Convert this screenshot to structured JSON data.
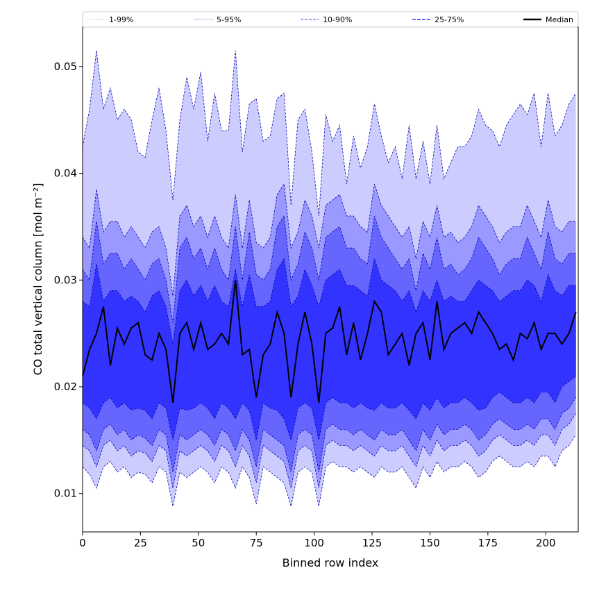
{
  "chart_data": {
    "type": "area",
    "title": "",
    "xlabel": "Binned row index",
    "ylabel": "CO total vertical column [mol m⁻²]",
    "xlim": [
      0,
      214
    ],
    "ylim": [
      0.0064,
      0.0537
    ],
    "x_ticks": [
      0,
      25,
      50,
      75,
      100,
      125,
      150,
      175,
      200
    ],
    "y_ticks": [
      0.01,
      0.02,
      0.03,
      0.04,
      0.05
    ],
    "y_tick_labels": [
      "0.01",
      "0.02",
      "0.03",
      "0.04",
      "0.05"
    ],
    "x_start": 0,
    "x_step": 3,
    "legend_placement": "top",
    "legend": [
      {
        "label": "1-99%",
        "color": "#ccccff"
      },
      {
        "label": "5-95%",
        "color": "#9999ff"
      },
      {
        "label": "10-90%",
        "color": "#6666ff"
      },
      {
        "label": "25-75%",
        "color": "#3333ff"
      },
      {
        "label": "Median",
        "color": "#000000"
      }
    ],
    "bands": [
      {
        "name": "1-99%",
        "color": "#ccccff",
        "lower": [
          0.0125,
          0.0118,
          0.0105,
          0.0125,
          0.013,
          0.012,
          0.0125,
          0.0115,
          0.012,
          0.0118,
          0.011,
          0.0125,
          0.012,
          0.0088,
          0.012,
          0.0115,
          0.012,
          0.0125,
          0.012,
          0.011,
          0.0125,
          0.012,
          0.0105,
          0.0125,
          0.0115,
          0.009,
          0.0125,
          0.012,
          0.0115,
          0.011,
          0.0088,
          0.012,
          0.0125,
          0.012,
          0.0088,
          0.0125,
          0.013,
          0.0125,
          0.0125,
          0.012,
          0.0125,
          0.012,
          0.0115,
          0.0125,
          0.012,
          0.012,
          0.0125,
          0.0115,
          0.0105,
          0.0125,
          0.0115,
          0.013,
          0.012,
          0.0125,
          0.0125,
          0.013,
          0.0125,
          0.0115,
          0.012,
          0.013,
          0.0135,
          0.013,
          0.0125,
          0.0125,
          0.013,
          0.0125,
          0.0135,
          0.0135,
          0.0125,
          0.014,
          0.0145,
          0.0155
        ],
        "upper": [
          0.0425,
          0.046,
          0.0515,
          0.046,
          0.048,
          0.045,
          0.046,
          0.045,
          0.042,
          0.0415,
          0.045,
          0.048,
          0.044,
          0.0375,
          0.045,
          0.049,
          0.046,
          0.0495,
          0.043,
          0.0475,
          0.044,
          0.044,
          0.0515,
          0.042,
          0.0465,
          0.047,
          0.043,
          0.0435,
          0.047,
          0.0475,
          0.037,
          0.045,
          0.046,
          0.042,
          0.036,
          0.0455,
          0.043,
          0.0445,
          0.039,
          0.0435,
          0.0405,
          0.0425,
          0.0465,
          0.0435,
          0.041,
          0.0425,
          0.0395,
          0.0445,
          0.0395,
          0.043,
          0.039,
          0.0445,
          0.0395,
          0.041,
          0.0425,
          0.0425,
          0.0435,
          0.046,
          0.0445,
          0.044,
          0.0425,
          0.0445,
          0.0455,
          0.0465,
          0.0455,
          0.0475,
          0.0425,
          0.0475,
          0.0435,
          0.0445,
          0.0465,
          0.0475
        ]
      },
      {
        "name": "5-95%",
        "color": "#9999ff",
        "lower": [
          0.0145,
          0.014,
          0.0125,
          0.0145,
          0.015,
          0.014,
          0.0145,
          0.0135,
          0.014,
          0.0138,
          0.013,
          0.0145,
          0.014,
          0.0105,
          0.014,
          0.0135,
          0.014,
          0.0145,
          0.014,
          0.013,
          0.0145,
          0.014,
          0.0125,
          0.0145,
          0.0135,
          0.011,
          0.0145,
          0.014,
          0.0135,
          0.013,
          0.0105,
          0.014,
          0.0145,
          0.014,
          0.0105,
          0.0145,
          0.015,
          0.0145,
          0.0145,
          0.014,
          0.0145,
          0.014,
          0.0135,
          0.0145,
          0.014,
          0.014,
          0.0145,
          0.0135,
          0.0125,
          0.0145,
          0.0135,
          0.015,
          0.014,
          0.0145,
          0.0145,
          0.015,
          0.0145,
          0.0135,
          0.014,
          0.015,
          0.0155,
          0.015,
          0.0145,
          0.0145,
          0.015,
          0.0145,
          0.0155,
          0.0155,
          0.0145,
          0.016,
          0.0165,
          0.0175
        ],
        "upper": [
          0.034,
          0.033,
          0.0385,
          0.0345,
          0.0355,
          0.0355,
          0.034,
          0.035,
          0.034,
          0.033,
          0.0345,
          0.035,
          0.033,
          0.0285,
          0.036,
          0.037,
          0.035,
          0.036,
          0.034,
          0.036,
          0.034,
          0.033,
          0.038,
          0.033,
          0.0375,
          0.0335,
          0.033,
          0.034,
          0.038,
          0.039,
          0.033,
          0.0345,
          0.0375,
          0.036,
          0.033,
          0.037,
          0.0375,
          0.038,
          0.036,
          0.036,
          0.035,
          0.0345,
          0.039,
          0.037,
          0.036,
          0.035,
          0.034,
          0.035,
          0.032,
          0.0355,
          0.034,
          0.037,
          0.034,
          0.0345,
          0.0335,
          0.034,
          0.035,
          0.037,
          0.036,
          0.035,
          0.0335,
          0.0345,
          0.035,
          0.035,
          0.037,
          0.0355,
          0.034,
          0.0375,
          0.035,
          0.0345,
          0.0355,
          0.0355
        ]
      },
      {
        "name": "10-90%",
        "color": "#6666ff",
        "lower": [
          0.016,
          0.0155,
          0.014,
          0.016,
          0.0165,
          0.0155,
          0.016,
          0.015,
          0.0155,
          0.0152,
          0.0145,
          0.016,
          0.0155,
          0.012,
          0.0155,
          0.015,
          0.0155,
          0.016,
          0.0155,
          0.0145,
          0.016,
          0.0155,
          0.014,
          0.016,
          0.015,
          0.0125,
          0.016,
          0.0155,
          0.015,
          0.0145,
          0.012,
          0.0155,
          0.016,
          0.0155,
          0.012,
          0.016,
          0.0165,
          0.016,
          0.016,
          0.0155,
          0.016,
          0.0155,
          0.015,
          0.016,
          0.0155,
          0.0155,
          0.016,
          0.015,
          0.014,
          0.016,
          0.015,
          0.0165,
          0.0155,
          0.016,
          0.016,
          0.0165,
          0.016,
          0.015,
          0.0155,
          0.0165,
          0.017,
          0.0165,
          0.016,
          0.016,
          0.0165,
          0.016,
          0.017,
          0.017,
          0.016,
          0.0175,
          0.018,
          0.019
        ],
        "upper": [
          0.031,
          0.03,
          0.0355,
          0.0315,
          0.0325,
          0.0325,
          0.031,
          0.032,
          0.031,
          0.03,
          0.0315,
          0.032,
          0.03,
          0.026,
          0.033,
          0.034,
          0.032,
          0.033,
          0.031,
          0.033,
          0.031,
          0.03,
          0.035,
          0.03,
          0.0345,
          0.0305,
          0.03,
          0.031,
          0.035,
          0.036,
          0.03,
          0.0315,
          0.0345,
          0.033,
          0.03,
          0.034,
          0.0345,
          0.035,
          0.033,
          0.033,
          0.032,
          0.0315,
          0.036,
          0.034,
          0.033,
          0.032,
          0.031,
          0.032,
          0.029,
          0.0325,
          0.031,
          0.034,
          0.031,
          0.0315,
          0.0305,
          0.031,
          0.032,
          0.034,
          0.033,
          0.032,
          0.0305,
          0.0315,
          0.032,
          0.032,
          0.034,
          0.0325,
          0.031,
          0.0345,
          0.032,
          0.0315,
          0.0325,
          0.0325
        ]
      },
      {
        "name": "25-75%",
        "color": "#3333ff",
        "lower": [
          0.0185,
          0.018,
          0.017,
          0.0185,
          0.019,
          0.018,
          0.0185,
          0.0178,
          0.018,
          0.0178,
          0.017,
          0.0185,
          0.018,
          0.015,
          0.018,
          0.0178,
          0.018,
          0.0185,
          0.018,
          0.017,
          0.0185,
          0.018,
          0.017,
          0.0185,
          0.0178,
          0.015,
          0.0185,
          0.018,
          0.0178,
          0.017,
          0.015,
          0.018,
          0.0185,
          0.018,
          0.015,
          0.0185,
          0.019,
          0.0185,
          0.0185,
          0.018,
          0.0185,
          0.018,
          0.0178,
          0.0185,
          0.018,
          0.018,
          0.0185,
          0.0178,
          0.017,
          0.0185,
          0.0178,
          0.019,
          0.018,
          0.0185,
          0.0185,
          0.019,
          0.0185,
          0.0178,
          0.018,
          0.019,
          0.0195,
          0.019,
          0.0185,
          0.0185,
          0.019,
          0.0185,
          0.0195,
          0.0195,
          0.0185,
          0.02,
          0.0205,
          0.021
        ],
        "upper": [
          0.028,
          0.0275,
          0.0315,
          0.028,
          0.029,
          0.029,
          0.028,
          0.0285,
          0.028,
          0.027,
          0.0285,
          0.029,
          0.0275,
          0.024,
          0.029,
          0.03,
          0.0285,
          0.0295,
          0.028,
          0.0295,
          0.028,
          0.0275,
          0.031,
          0.0275,
          0.0305,
          0.0275,
          0.0275,
          0.028,
          0.031,
          0.032,
          0.0275,
          0.0285,
          0.031,
          0.0295,
          0.0275,
          0.03,
          0.0305,
          0.031,
          0.0295,
          0.0295,
          0.029,
          0.0285,
          0.032,
          0.03,
          0.0295,
          0.029,
          0.028,
          0.029,
          0.027,
          0.029,
          0.028,
          0.03,
          0.028,
          0.0285,
          0.028,
          0.028,
          0.029,
          0.03,
          0.0295,
          0.029,
          0.028,
          0.0285,
          0.029,
          0.029,
          0.03,
          0.0295,
          0.028,
          0.0305,
          0.029,
          0.0285,
          0.0295,
          0.0295
        ]
      }
    ],
    "median": [
      0.021,
      0.0235,
      0.025,
      0.0275,
      0.022,
      0.0255,
      0.024,
      0.0255,
      0.026,
      0.023,
      0.0225,
      0.025,
      0.0235,
      0.0185,
      0.025,
      0.026,
      0.0235,
      0.026,
      0.0235,
      0.024,
      0.025,
      0.024,
      0.03,
      0.023,
      0.0235,
      0.019,
      0.023,
      0.024,
      0.027,
      0.025,
      0.019,
      0.024,
      0.027,
      0.024,
      0.0185,
      0.025,
      0.0255,
      0.0275,
      0.023,
      0.026,
      0.0225,
      0.025,
      0.028,
      0.027,
      0.023,
      0.024,
      0.025,
      0.022,
      0.025,
      0.026,
      0.0225,
      0.028,
      0.0235,
      0.025,
      0.0255,
      0.026,
      0.025,
      0.027,
      0.026,
      0.025,
      0.0235,
      0.024,
      0.0225,
      0.025,
      0.0245,
      0.026,
      0.0235,
      0.025,
      0.025,
      0.024,
      0.025,
      0.027
    ]
  }
}
